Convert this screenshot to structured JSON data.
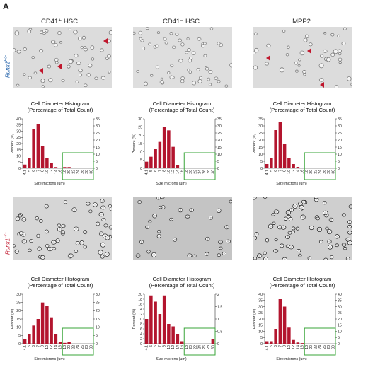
{
  "figure": {
    "panel_letter": "A",
    "col_headers": [
      "CD41⁺ HSC",
      "CD41⁻ HSC",
      "MPP2"
    ],
    "row_labels": [
      "Runx1F/F",
      "Runx1-/-"
    ]
  },
  "colors": {
    "bar": "#b3152e",
    "highlight_box": "#3aa53a",
    "arrow": "#c0162c",
    "row1_label": "#1f5fa8",
    "row2_label": "#c0162c"
  },
  "chart_data": [
    {
      "type": "bar",
      "title": "Cell Diameter Histogram",
      "subtitle": "(Percentage of Total Count)",
      "ylabel": "Percent (%)",
      "xlabel": "Size microns (um)",
      "categories": [
        "4.1",
        "5",
        "6",
        "7",
        "8",
        "10",
        "12",
        "14",
        "16",
        "18",
        "20",
        "22",
        "24",
        "26",
        "28",
        "30"
      ],
      "values": [
        3,
        8,
        32,
        36,
        18,
        8,
        4,
        1,
        0.5,
        1,
        1,
        0.5,
        0.5,
        0.3,
        0.3,
        0.3
      ],
      "ylim_left": [
        0,
        40
      ],
      "ylim_right": [
        0,
        35
      ],
      "ticks_left": [
        0,
        5,
        10,
        15,
        20,
        25,
        30,
        35,
        40
      ],
      "ticks_right": [
        0,
        5,
        10,
        15,
        20,
        25,
        30,
        35
      ]
    },
    {
      "type": "bar",
      "title": "Cell Diameter Histogram",
      "subtitle": "(Percentage of Total Count)",
      "ylabel": "Percent (%)",
      "xlabel": "Size microns (um)",
      "categories": [
        "4.1",
        "5",
        "6",
        "7",
        "8",
        "10",
        "12",
        "14",
        "16",
        "18",
        "20",
        "22",
        "24",
        "26",
        "28",
        "30"
      ],
      "values": [
        4,
        7,
        12,
        16,
        25,
        23,
        13,
        2,
        0.3,
        0.3,
        0.2,
        0.2,
        0.2,
        0.2,
        0.2,
        0.2
      ],
      "ylim_left": [
        0,
        30
      ],
      "ylim_right": [
        0,
        35
      ],
      "ticks_left": [
        0,
        5,
        10,
        15,
        20,
        25,
        30
      ],
      "ticks_right": [
        0,
        5,
        10,
        15,
        20,
        25,
        30,
        35
      ]
    },
    {
      "type": "bar",
      "title": "Cell Diameter Histogram",
      "subtitle": "(Percentage of Total Count)",
      "ylabel": "Percent (%)",
      "xlabel": "Size microns (um)",
      "categories": [
        "4.1",
        "5",
        "6",
        "7",
        "8",
        "10",
        "12",
        "14",
        "16",
        "18",
        "20",
        "22",
        "24",
        "26",
        "28",
        "30"
      ],
      "values": [
        3,
        7,
        27,
        33,
        17,
        7,
        3,
        1,
        0.5,
        0.5,
        0.4,
        0.3,
        0.3,
        0.2,
        0.2,
        0.2
      ],
      "ylim_left": [
        0,
        35
      ],
      "ylim_right": [
        0,
        35
      ],
      "ticks_left": [
        0,
        5,
        10,
        15,
        20,
        25,
        30,
        35
      ],
      "ticks_right": [
        0,
        5,
        10,
        15,
        20,
        25,
        30,
        35
      ]
    },
    {
      "type": "bar",
      "title": "Cell Diameter Histogram",
      "subtitle": "(Percentage of Total Count)",
      "ylabel": "Percent (%)",
      "xlabel": "Size microns (um)",
      "categories": [
        "4.1",
        "5",
        "6",
        "7",
        "8",
        "10",
        "12",
        "14",
        "16",
        "18",
        "20",
        "22",
        "24",
        "26",
        "28",
        "30"
      ],
      "values": [
        3,
        6,
        11,
        15,
        25,
        23,
        16,
        6,
        1,
        0.5,
        1,
        0,
        0,
        0,
        0,
        0
      ],
      "ylim_left": [
        0,
        30
      ],
      "ylim_right": [
        0,
        30
      ],
      "ticks_left": [
        0,
        5,
        10,
        15,
        20,
        25,
        30
      ],
      "ticks_right": [
        0,
        5,
        10,
        15,
        20,
        25,
        30
      ]
    },
    {
      "type": "bar",
      "title": "Cell Diameter Histogram",
      "subtitle": "(Percentage of Total Count)",
      "ylabel": "Percent (%)",
      "xlabel": "Size microns (um)",
      "categories": [
        "4.1",
        "5",
        "6",
        "7",
        "8",
        "10",
        "12",
        "14",
        "16",
        "18",
        "20",
        "22",
        "24",
        "26",
        "28",
        "30"
      ],
      "values": [
        10,
        19.5,
        17,
        12,
        19.5,
        8,
        7,
        4,
        1,
        0,
        0,
        0,
        0,
        0,
        0,
        2
      ],
      "ylim_left": [
        0,
        20
      ],
      "ylim_right": [
        0,
        2
      ],
      "ticks_left": [
        0,
        2,
        4,
        6,
        8,
        10,
        12,
        14,
        16,
        18,
        20
      ],
      "ticks_right": [
        0,
        0.5,
        1,
        1.5,
        2
      ]
    },
    {
      "type": "bar",
      "title": "Cell Diameter Histogram",
      "subtitle": "(Percentage of Total Count)",
      "ylabel": "Percent (%)",
      "xlabel": "Size microns (um)",
      "categories": [
        "4.1",
        "5",
        "6",
        "7",
        "8",
        "10",
        "12",
        "14",
        "16",
        "18",
        "20",
        "22",
        "24",
        "26",
        "28",
        "30"
      ],
      "values": [
        2,
        2,
        12,
        36,
        30,
        13,
        3,
        1,
        0.5,
        0,
        0,
        0,
        0,
        0,
        0,
        0
      ],
      "ylim_left": [
        0,
        40
      ],
      "ylim_right": [
        0,
        40
      ],
      "ticks_left": [
        0,
        5,
        10,
        15,
        20,
        25,
        30,
        35,
        40
      ],
      "ticks_right": [
        0,
        5,
        10,
        15,
        20,
        25,
        30,
        35,
        40
      ]
    }
  ]
}
